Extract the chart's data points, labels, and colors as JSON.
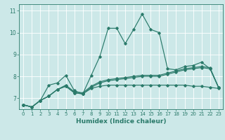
{
  "title": "",
  "xlabel": "Humidex (Indice chaleur)",
  "bg_color": "#cce8e8",
  "line_color": "#2a7a6a",
  "grid_color": "#ffffff",
  "xlim": [
    -0.5,
    23.5
  ],
  "ylim": [
    6.5,
    11.3
  ],
  "xticks": [
    0,
    1,
    2,
    3,
    4,
    5,
    6,
    7,
    8,
    9,
    10,
    11,
    12,
    13,
    14,
    15,
    16,
    17,
    18,
    19,
    20,
    21,
    22,
    23
  ],
  "yticks": [
    7,
    8,
    9,
    10,
    11
  ],
  "lines": [
    [
      6.7,
      6.6,
      6.9,
      7.6,
      7.7,
      8.05,
      7.35,
      7.2,
      8.05,
      8.9,
      10.2,
      10.2,
      9.5,
      10.15,
      10.85,
      10.15,
      10.0,
      8.35,
      8.3,
      8.45,
      8.5,
      8.65,
      8.35,
      7.5
    ],
    [
      6.7,
      6.6,
      6.9,
      7.1,
      7.4,
      7.55,
      7.25,
      7.2,
      7.45,
      7.55,
      7.6,
      7.6,
      7.6,
      7.6,
      7.6,
      7.6,
      7.6,
      7.6,
      7.6,
      7.6,
      7.55,
      7.55,
      7.5,
      7.45
    ],
    [
      6.7,
      6.6,
      6.9,
      7.1,
      7.4,
      7.55,
      7.25,
      7.2,
      7.5,
      7.7,
      7.8,
      7.85,
      7.9,
      7.95,
      8.0,
      8.0,
      8.0,
      8.1,
      8.2,
      8.3,
      8.35,
      8.4,
      8.35,
      7.5
    ],
    [
      6.7,
      6.6,
      6.9,
      7.1,
      7.4,
      7.6,
      7.3,
      7.25,
      7.55,
      7.75,
      7.85,
      7.9,
      7.95,
      8.0,
      8.05,
      8.05,
      8.05,
      8.15,
      8.25,
      8.35,
      8.4,
      8.45,
      8.4,
      7.5
    ]
  ]
}
